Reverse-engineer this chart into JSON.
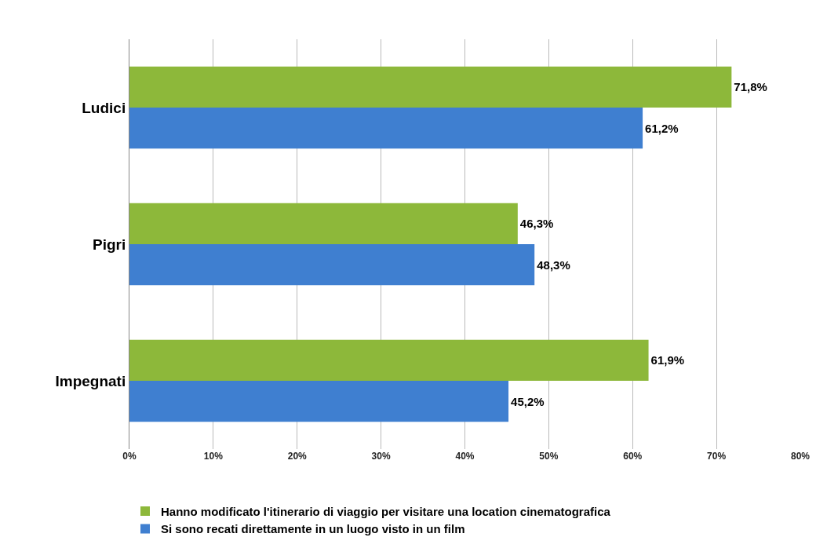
{
  "chart_data": {
    "type": "bar",
    "orientation": "horizontal",
    "categories": [
      "Ludici",
      "Pigri",
      "Impegnati"
    ],
    "series": [
      {
        "name": "Hanno modificato l'itinerario di viaggio per visitare una location cinematografica",
        "color": "#8db83a",
        "values": [
          71.8,
          46.3,
          61.9
        ],
        "value_labels": [
          "71,8%",
          "46,3%",
          "61,9%"
        ]
      },
      {
        "name": "Si sono recati direttamente in un luogo visto in un film",
        "color": "#3f7fd0",
        "values": [
          61.2,
          48.3,
          45.2
        ],
        "value_labels": [
          "61,2%",
          "48,3%",
          "45,2%"
        ]
      }
    ],
    "xlim": [
      0,
      80
    ],
    "xticks": [
      {
        "value": 0,
        "label": "0%"
      },
      {
        "value": 10,
        "label": "10%"
      },
      {
        "value": 20,
        "label": "20%"
      },
      {
        "value": 30,
        "label": "30%"
      },
      {
        "value": 40,
        "label": "40%"
      },
      {
        "value": 50,
        "label": "50%"
      },
      {
        "value": 60,
        "label": "60%"
      },
      {
        "value": 70,
        "label": "70%"
      },
      {
        "value": 80,
        "label": "80%"
      }
    ],
    "grid": "x",
    "legend": "bottom"
  }
}
